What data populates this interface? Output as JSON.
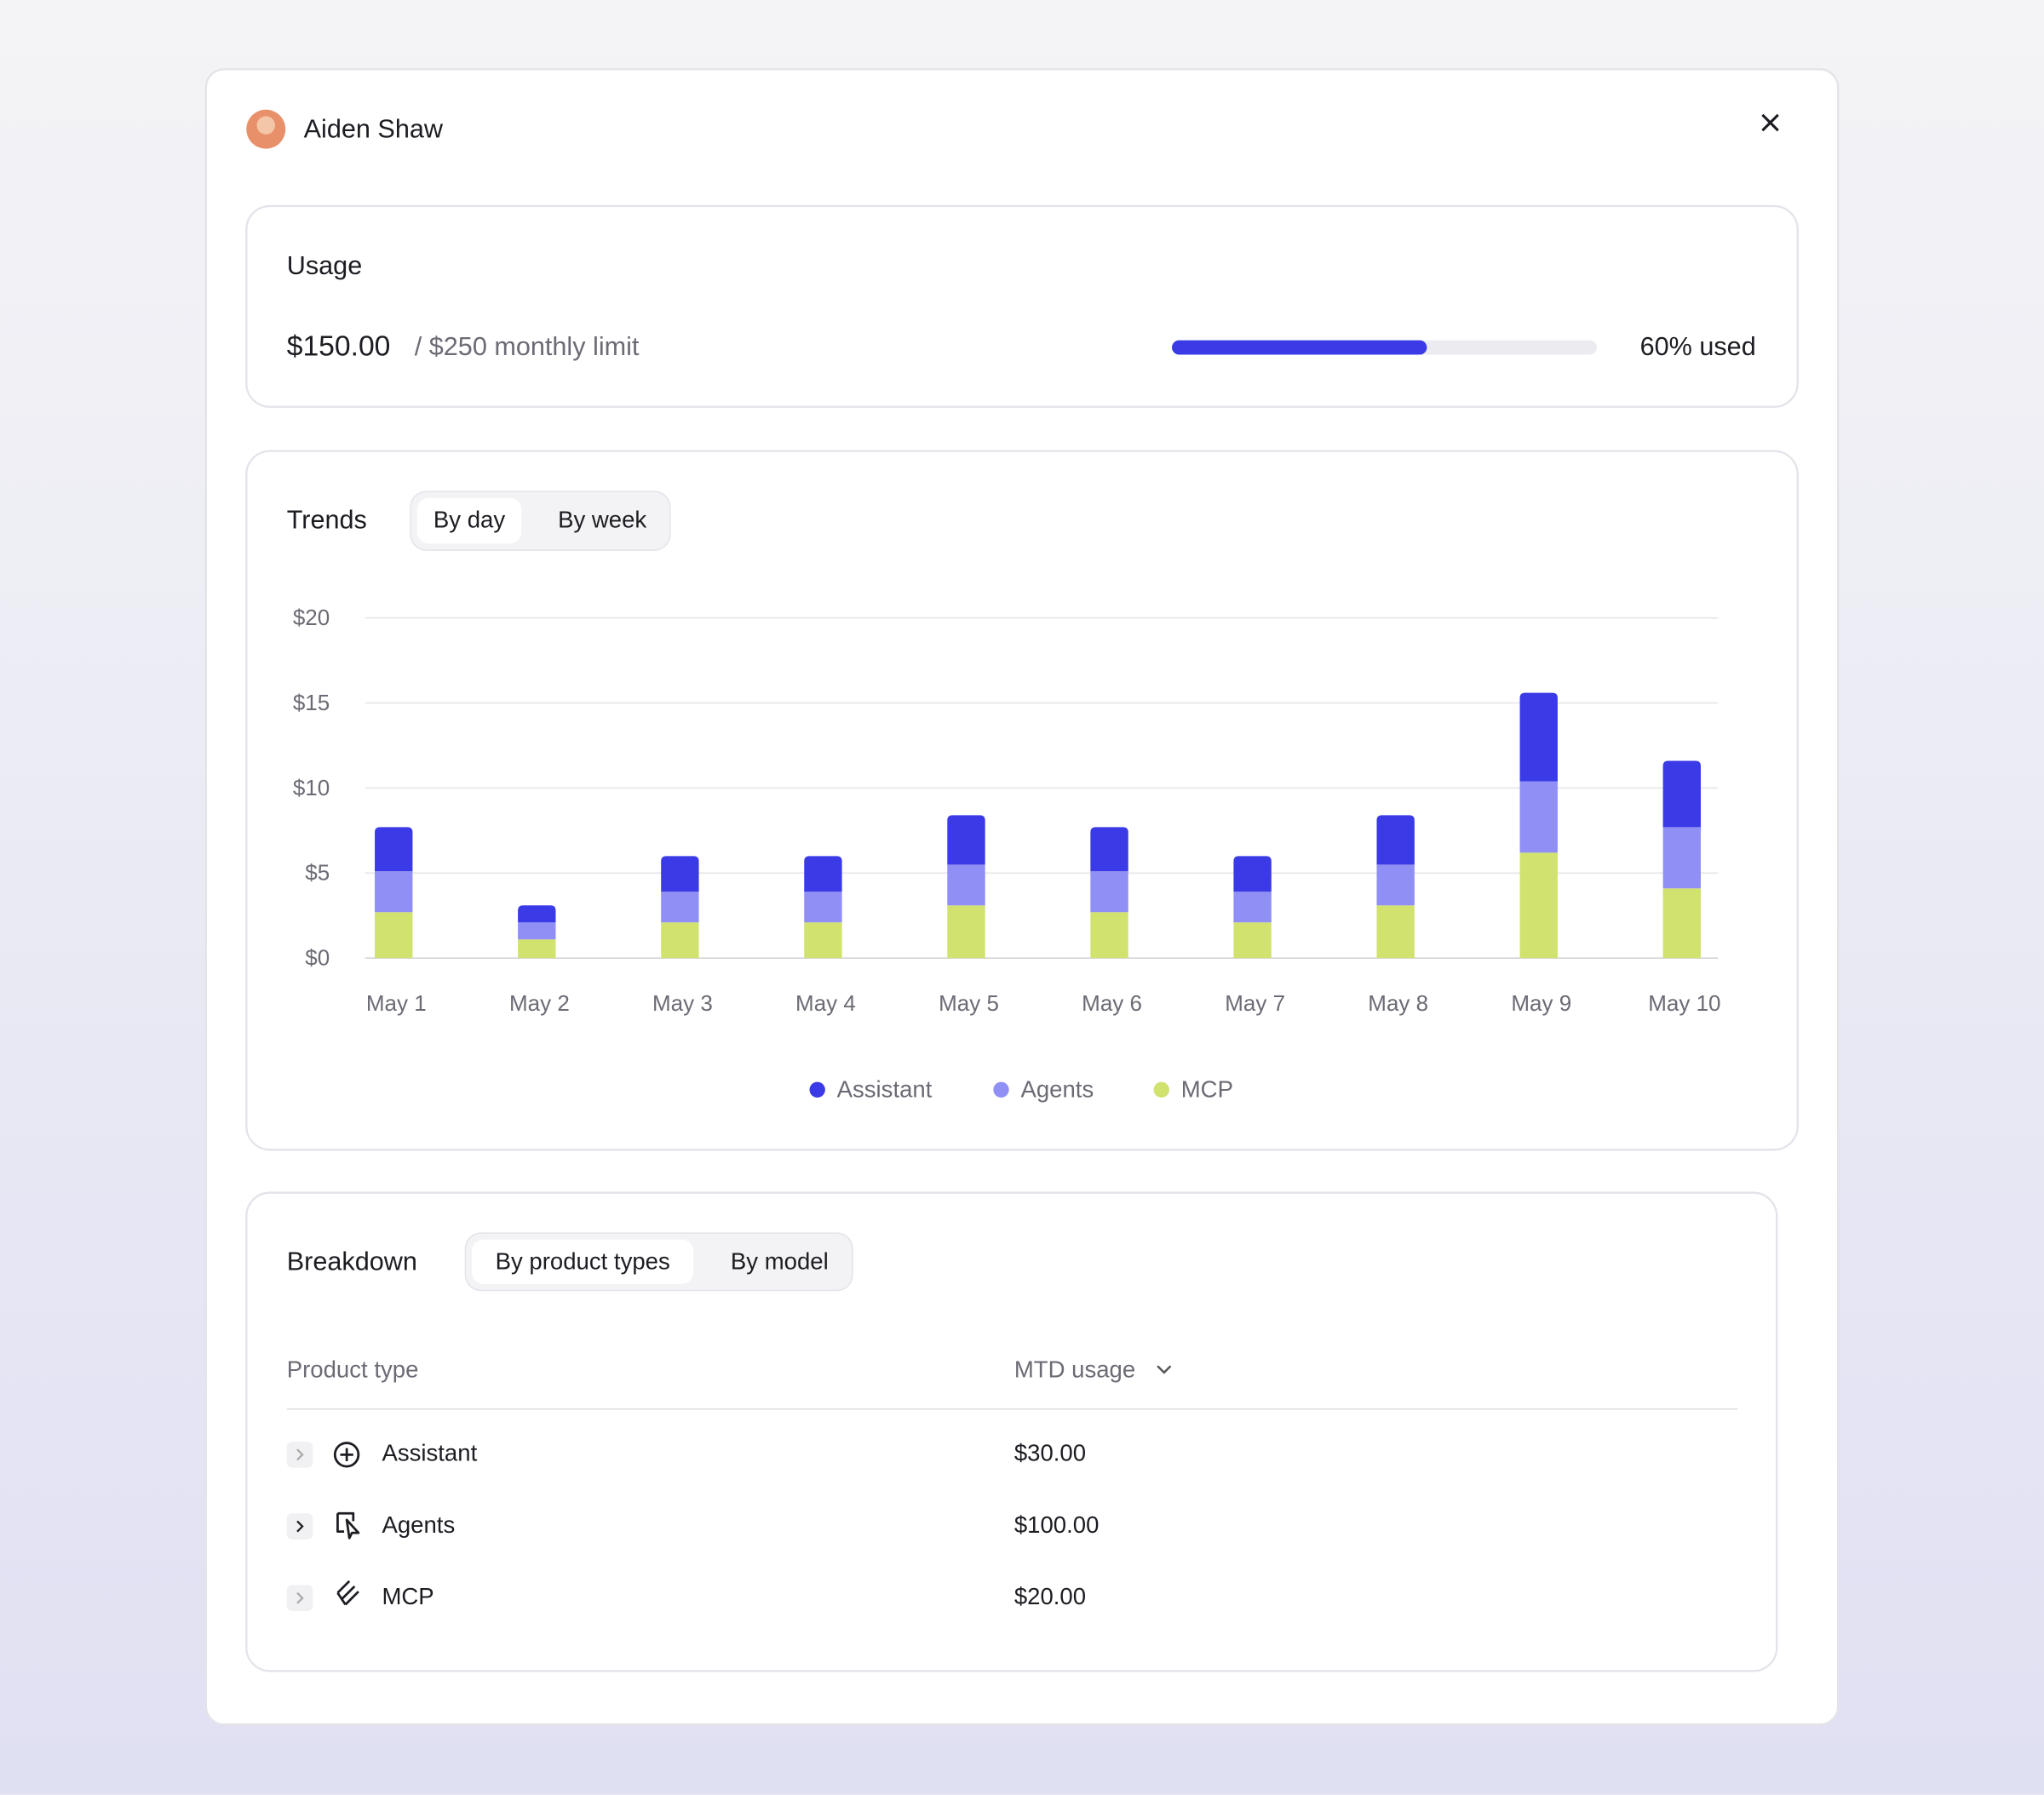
{
  "header": {
    "name": "Aiden Shaw"
  },
  "usage": {
    "title": "Usage",
    "amount": "$150.00",
    "limit": "/ $250 monthly limit",
    "used": {
      "value": 60,
      "label": "60% used"
    },
    "color": "#3a3ae6"
  },
  "trends": {
    "title": "Trends",
    "toggles": [
      "By day",
      "By week"
    ],
    "chart_data": {
      "type": "bar",
      "stacked": true,
      "grid": true,
      "categories": [
        "May 1",
        "May 2",
        "May 3",
        "May 4",
        "May 5",
        "May 6",
        "May 7",
        "May 8",
        "May 9",
        "May 10"
      ],
      "series": [
        {
          "name": "Assistant",
          "color": "#3a3ae6",
          "values": [
            2.6,
            1.0,
            2.1,
            2.1,
            2.9,
            2.6,
            2.1,
            2.9,
            5.2,
            3.9
          ]
        },
        {
          "name": "Agents",
          "color": "#8f8ff5",
          "values": [
            2.4,
            1.0,
            1.8,
            1.8,
            2.4,
            2.4,
            1.8,
            2.4,
            4.2,
            3.6
          ]
        },
        {
          "name": "MCP",
          "color": "#d1e26f",
          "values": [
            2.7,
            1.1,
            2.1,
            2.1,
            3.1,
            2.7,
            2.1,
            3.1,
            6.2,
            4.1
          ]
        }
      ],
      "ylim": [
        0,
        20
      ],
      "yticks": [
        {
          "value": 0,
          "label": "$0"
        },
        {
          "value": 5,
          "label": "$5"
        },
        {
          "value": 10,
          "label": "$10"
        },
        {
          "value": 15,
          "label": "$15"
        },
        {
          "value": 20,
          "label": "$20"
        }
      ]
    }
  },
  "breakdown": {
    "title": "Breakdown",
    "toggles": [
      "By product types",
      "By model"
    ],
    "table": {
      "headers": [
        "Product type",
        "MTD usage"
      ],
      "rows": [
        [
          "Assistant",
          "$30.00"
        ],
        [
          "Agents",
          "$100.00"
        ],
        [
          "MCP",
          "$20.00"
        ]
      ]
    }
  }
}
